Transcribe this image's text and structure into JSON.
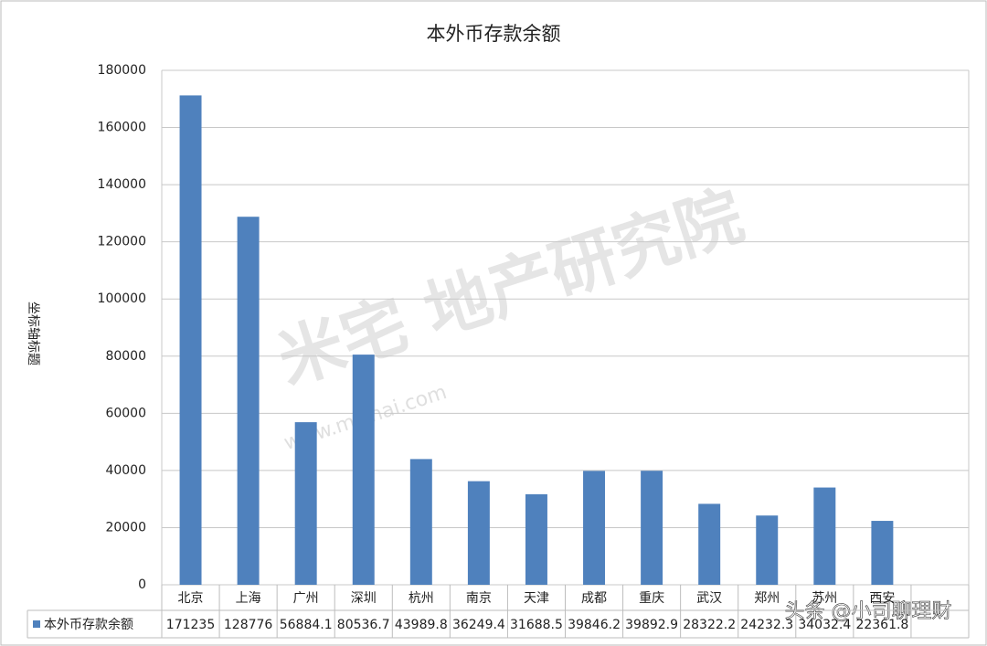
{
  "chart_data": {
    "type": "bar",
    "title": "本外币存款余额",
    "y_title": "坐标轴标题",
    "categories": [
      "北京",
      "上海",
      "广州",
      "深圳",
      "杭州",
      "南京",
      "天津",
      "成都",
      "重庆",
      "武汉",
      "郑州",
      "苏州",
      "西安",
      null
    ],
    "series": [
      {
        "name": "本外币存款余额",
        "color": "#4f81bd",
        "values": [
          171235,
          128776,
          56884.1,
          80536.7,
          43989.8,
          36249.4,
          31688.5,
          39846.2,
          39892.9,
          28322.2,
          24232.3,
          34032.4,
          22361.8,
          null
        ]
      }
    ],
    "ylim": [
      0,
      180000
    ],
    "yticks": [
      0,
      20000,
      40000,
      60000,
      80000,
      100000,
      120000,
      140000,
      160000,
      180000
    ],
    "grid": true,
    "watermarks": [
      "米宅 地产研究院",
      "www.mizhai.com",
      "头条 @小司聊理财"
    ]
  }
}
